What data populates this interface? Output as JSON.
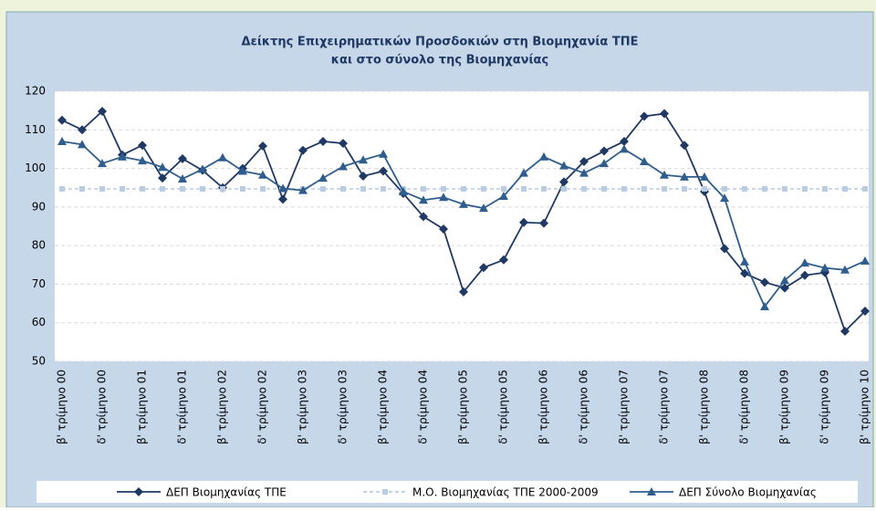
{
  "chart_data": {
    "type": "line",
    "title_lines": [
      "Δείκτης Επιχειρηματικών Προσδοκιών στη Βιομηχανία ΤΠΕ",
      "και στο σύνολο της Βιομηχανίας"
    ],
    "categories": [
      "β' τρίμηνο 00",
      null,
      "δ' τρίμηνο 00",
      null,
      "β' τρίμηνο 01",
      null,
      "δ' τρίμηνο 01",
      null,
      "β' τρίμηνο 02",
      null,
      "δ' τρίμηνο 02",
      null,
      "β' τρίμηνο 03",
      null,
      "δ' τρίμηνο 03",
      null,
      "β' τρίμηνο 04",
      null,
      "δ' τρίμηνο 04",
      null,
      "β' τρίμηνο 05",
      null,
      "δ' τρίμηνο 05",
      null,
      "β' τρίμηνο 06",
      null,
      "δ' τρίμηνο 06",
      null,
      "β' τρίμηνο 07",
      null,
      "δ' τρίμηνο 07",
      null,
      "β' τρίμηνο 08",
      null,
      "δ' τρίμηνο 08",
      null,
      "β' τρίμηνο 09",
      null,
      "δ' τρίμηνο 09",
      null,
      "β' τρίμηνο 10"
    ],
    "series": [
      {
        "name": "ΔΕΠ Βιομηχανίας ΤΠΕ",
        "color": "#1f3864",
        "marker": "diamond",
        "values": [
          112.5,
          110,
          114.8,
          103.5,
          106,
          97.5,
          102.5,
          99.5,
          95,
          100,
          105.8,
          92,
          104.7,
          107,
          106.5,
          98,
          99.3,
          93.5,
          87.5,
          84.3,
          68,
          74.3,
          76.3,
          86,
          85.8,
          96.5,
          101.8,
          104.5,
          107,
          113.5,
          114.2,
          106,
          94,
          79.2,
          72.8,
          70.5,
          69,
          72.3,
          73,
          57.8,
          63
        ]
      },
      {
        "name": "Μ.Ο. Βιομηχανίας ΤΠΕ 2000-2009",
        "color": "#b8cce4",
        "marker": "square",
        "dashed": true,
        "values": [
          94.7,
          94.7,
          94.7,
          94.7,
          94.7,
          94.7,
          94.7,
          94.7,
          94.7,
          94.7,
          94.7,
          94.7,
          94.7,
          94.7,
          94.7,
          94.7,
          94.7,
          94.7,
          94.7,
          94.7,
          94.7,
          94.7,
          94.7,
          94.7,
          94.7,
          94.7,
          94.7,
          94.7,
          94.7,
          94.7,
          94.7,
          94.7,
          94.7,
          94.7,
          94.7,
          94.7,
          94.7,
          94.7,
          94.7,
          94.7,
          94.7
        ]
      },
      {
        "name": "ΔΕΠ Σύνολο Βιομηχανίας",
        "color": "#2f5e8e",
        "marker": "triangle",
        "values": [
          107,
          106.2,
          101.3,
          103,
          102,
          100.3,
          97.3,
          99.8,
          102.8,
          99.3,
          98.3,
          94.8,
          94.3,
          97.5,
          100.5,
          102.2,
          103.7,
          94,
          91.8,
          92.5,
          90.7,
          89.7,
          92.8,
          98.8,
          103,
          100.7,
          98.8,
          101.3,
          105,
          101.8,
          98.3,
          97.8,
          97.8,
          92.3,
          75.8,
          64.2,
          71,
          75.5,
          74.2,
          73.7,
          76
        ]
      }
    ],
    "ylim": [
      50,
      120
    ],
    "yticks": [
      50,
      60,
      70,
      80,
      90,
      100,
      110,
      120
    ],
    "grid": true,
    "legend": "bottom"
  }
}
